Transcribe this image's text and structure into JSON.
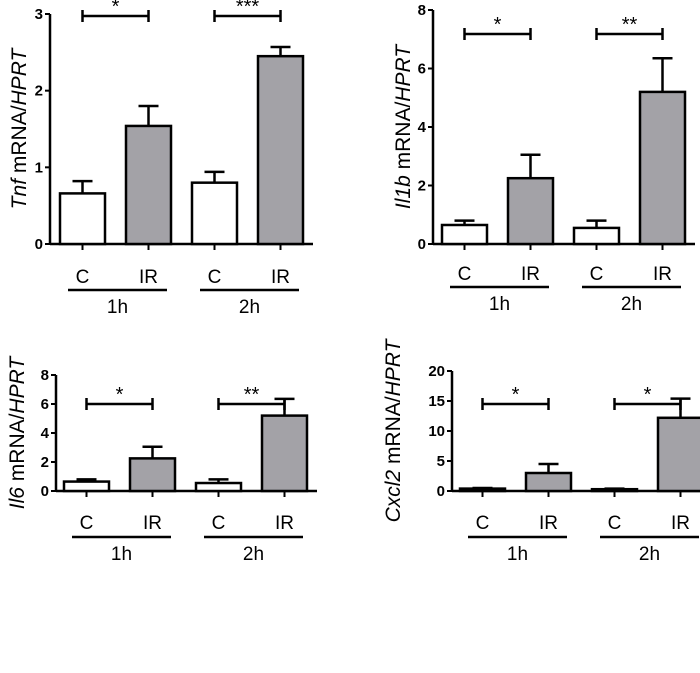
{
  "chart_data": [
    {
      "type": "bar",
      "ylabel": {
        "gene": "Tnf",
        "mid": " mRNA/",
        "ref": "HPRT"
      },
      "ylim": [
        0,
        3
      ],
      "yticks": [
        "0",
        "1",
        "2",
        "3"
      ],
      "categories": [
        "C",
        "IR",
        "C",
        "IR"
      ],
      "groups": [
        "1h",
        "2h"
      ],
      "values": [
        0.66,
        1.54,
        0.8,
        2.45
      ],
      "errors": [
        0.16,
        0.26,
        0.14,
        0.12
      ],
      "significance": [
        "*",
        "***"
      ]
    },
    {
      "type": "bar",
      "ylabel": {
        "gene": "Il1b",
        "mid": " mRNA/",
        "ref": "HPRT"
      },
      "ylim": [
        0,
        8
      ],
      "yticks": [
        "0",
        "2",
        "4",
        "6",
        "8"
      ],
      "categories": [
        "C",
        "IR",
        "C",
        "IR"
      ],
      "groups": [
        "1h",
        "2h"
      ],
      "values": [
        0.65,
        2.25,
        0.55,
        5.2
      ],
      "errors": [
        0.15,
        0.8,
        0.25,
        1.15
      ],
      "significance": [
        "*",
        "**"
      ]
    },
    {
      "type": "bar",
      "ylabel": {
        "gene": "Il6",
        "mid": " mRNA/",
        "ref": "HPRT"
      },
      "ylim": [
        0,
        8
      ],
      "yticks": [
        "0",
        "2",
        "4",
        "6",
        "8"
      ],
      "categories": [
        "C",
        "IR",
        "C",
        "IR"
      ],
      "groups": [
        "1h",
        "2h"
      ],
      "values": [
        0.65,
        2.25,
        0.55,
        5.2
      ],
      "errors": [
        0.15,
        0.8,
        0.25,
        1.15
      ],
      "significance": [
        "*",
        "**"
      ]
    },
    {
      "type": "bar",
      "ylabel": {
        "gene": "Cxcl2",
        "mid": " mRNA/",
        "ref": "HPRT"
      },
      "ylim": [
        0,
        20
      ],
      "yticks": [
        "0",
        "5",
        "10",
        "15",
        "20"
      ],
      "categories": [
        "C",
        "IR",
        "C",
        "IR"
      ],
      "groups": [
        "1h",
        "2h"
      ],
      "values": [
        0.4,
        3.0,
        0.3,
        12.2
      ],
      "errors": [
        0.1,
        1.5,
        0.1,
        3.2
      ],
      "significance": [
        "*",
        "*"
      ]
    }
  ],
  "colors": {
    "control": "#ffffff",
    "ir": "#a3a2a7",
    "stroke": "#000000"
  }
}
